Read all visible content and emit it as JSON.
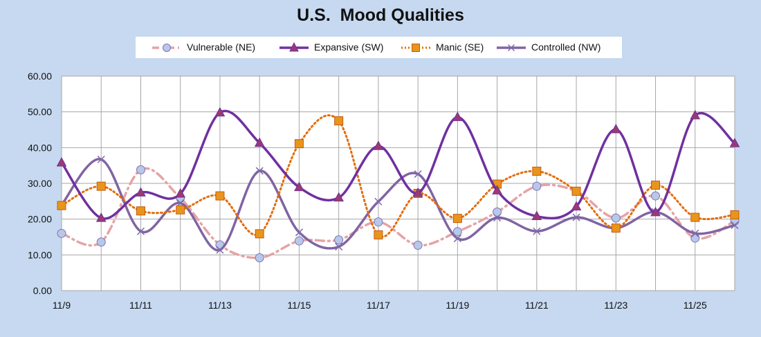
{
  "chart_data": {
    "type": "line",
    "title": "U.S.  Mood Qualities",
    "x": [
      "11/9",
      "11/10",
      "11/11",
      "11/12",
      "11/13",
      "11/14",
      "11/15",
      "11/16",
      "11/17",
      "11/18",
      "11/19",
      "11/20",
      "11/21",
      "11/22",
      "11/23",
      "11/24",
      "11/25",
      "11/26"
    ],
    "xtick_labels": [
      "11/9",
      "11/11",
      "11/13",
      "11/15",
      "11/17",
      "11/19",
      "11/21",
      "11/23",
      "11/25"
    ],
    "ytick_labels": [
      "0.00",
      "10.00",
      "20.00",
      "30.00",
      "40.00",
      "50.00",
      "60.00"
    ],
    "ylim": [
      0,
      60
    ],
    "grid": true,
    "legend_position": "top",
    "series": [
      {
        "name": "Vulnerable (NE)",
        "color": "#e6a3a6",
        "marker_fill": "#b8c8e8",
        "marker_stroke": "#7f72b5",
        "line_style": "dash-dot",
        "marker": "circle",
        "values": [
          16.0,
          13.6,
          33.8,
          25.9,
          12.8,
          9.2,
          13.9,
          14.2,
          19.2,
          12.7,
          16.5,
          22.0,
          29.2,
          27.8,
          20.3,
          26.5,
          14.7,
          19.5
        ]
      },
      {
        "name": "Expansive (SW)",
        "color": "#7030a0",
        "marker_fill": "#9b3a6e",
        "marker_stroke": "#7030a0",
        "line_style": "solid",
        "marker": "triangle",
        "values": [
          35.8,
          20.3,
          27.4,
          27.1,
          49.8,
          41.3,
          28.9,
          26.0,
          40.4,
          27.3,
          48.5,
          28.0,
          20.8,
          23.5,
          45.1,
          21.9,
          49.0,
          41.2
        ]
      },
      {
        "name": "Manic (SE)",
        "color": "#e46c0a",
        "marker_fill": "#e8951c",
        "marker_stroke": "#c55a11",
        "line_style": "dotted",
        "marker": "square",
        "values": [
          23.8,
          29.2,
          22.3,
          22.6,
          26.5,
          15.9,
          41.1,
          47.5,
          15.6,
          27.2,
          20.2,
          29.8,
          33.4,
          27.8,
          17.5,
          29.5,
          20.5,
          21.2
        ]
      },
      {
        "name": "Controlled (NW)",
        "color": "#8064a2",
        "marker_fill": "none",
        "marker_stroke": "#7d6aa9",
        "line_style": "solid",
        "marker": "x",
        "values": [
          24.0,
          36.7,
          16.6,
          24.5,
          11.4,
          33.5,
          16.3,
          12.3,
          24.9,
          32.6,
          14.6,
          20.4,
          16.6,
          20.5,
          17.5,
          22.0,
          16.0,
          18.3
        ]
      }
    ]
  }
}
